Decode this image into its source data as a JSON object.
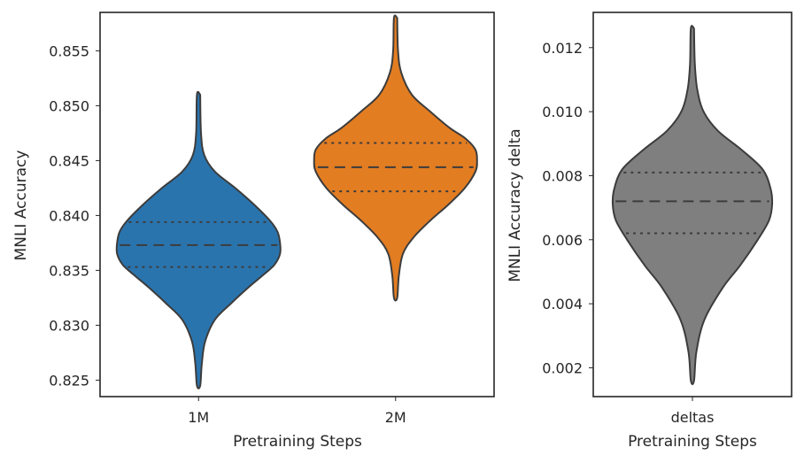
{
  "chart_data": [
    {
      "type": "violin",
      "xlabel": "Pretraining Steps",
      "ylabel": "MNLI Accuracy",
      "ylim": [
        0.8235,
        0.8585
      ],
      "yticks": [
        0.825,
        0.83,
        0.835,
        0.84,
        0.845,
        0.85,
        0.855
      ],
      "ytick_labels": [
        "0.825",
        "0.830",
        "0.835",
        "0.840",
        "0.845",
        "0.850",
        "0.855"
      ],
      "inner": "quartile",
      "series": [
        {
          "name": "1M",
          "color": "#2a74ae",
          "min": 0.8245,
          "max": 0.851,
          "q1": 0.8353,
          "median": 0.8373,
          "q3": 0.8394,
          "density": [
            [
              0.8245,
              0.02
            ],
            [
              0.8265,
              0.04
            ],
            [
              0.8285,
              0.08
            ],
            [
              0.8305,
              0.2
            ],
            [
              0.832,
              0.4
            ],
            [
              0.8335,
              0.62
            ],
            [
              0.8345,
              0.78
            ],
            [
              0.8355,
              0.93
            ],
            [
              0.8365,
              1.0
            ],
            [
              0.8375,
              1.0
            ],
            [
              0.8385,
              0.97
            ],
            [
              0.8395,
              0.88
            ],
            [
              0.841,
              0.68
            ],
            [
              0.8425,
              0.45
            ],
            [
              0.844,
              0.2
            ],
            [
              0.8455,
              0.07
            ],
            [
              0.8475,
              0.03
            ],
            [
              0.851,
              0.02
            ]
          ]
        },
        {
          "name": "2M",
          "color": "#e37d22",
          "min": 0.8325,
          "max": 0.858,
          "q1": 0.8422,
          "median": 0.8444,
          "q3": 0.8466,
          "density": [
            [
              0.8325,
              0.02
            ],
            [
              0.8345,
              0.04
            ],
            [
              0.8365,
              0.09
            ],
            [
              0.838,
              0.22
            ],
            [
              0.8395,
              0.42
            ],
            [
              0.841,
              0.65
            ],
            [
              0.8425,
              0.85
            ],
            [
              0.844,
              0.98
            ],
            [
              0.845,
              1.0
            ],
            [
              0.846,
              0.98
            ],
            [
              0.847,
              0.86
            ],
            [
              0.848,
              0.66
            ],
            [
              0.8495,
              0.42
            ],
            [
              0.851,
              0.2
            ],
            [
              0.853,
              0.07
            ],
            [
              0.855,
              0.03
            ],
            [
              0.858,
              0.02
            ]
          ]
        }
      ]
    },
    {
      "type": "violin",
      "xlabel": "Pretraining Steps",
      "ylabel": "MNLI Accuracy delta",
      "ylim": [
        0.0011,
        0.0131
      ],
      "yticks": [
        0.002,
        0.004,
        0.006,
        0.008,
        0.01,
        0.012
      ],
      "ytick_labels": [
        "0.002",
        "0.004",
        "0.006",
        "0.008",
        "0.010",
        "0.012"
      ],
      "inner": "quartile",
      "series": [
        {
          "name": "deltas",
          "color": "#7f7f7f",
          "min": 0.0016,
          "max": 0.0126,
          "q1": 0.0062,
          "median": 0.0072,
          "q3": 0.0081,
          "density": [
            [
              0.0016,
              0.02
            ],
            [
              0.0025,
              0.05
            ],
            [
              0.0035,
              0.15
            ],
            [
              0.0045,
              0.38
            ],
            [
              0.0052,
              0.6
            ],
            [
              0.006,
              0.82
            ],
            [
              0.0066,
              0.96
            ],
            [
              0.0071,
              1.0
            ],
            [
              0.0076,
              0.98
            ],
            [
              0.0082,
              0.88
            ],
            [
              0.0088,
              0.62
            ],
            [
              0.0094,
              0.32
            ],
            [
              0.01,
              0.14
            ],
            [
              0.0107,
              0.06
            ],
            [
              0.0115,
              0.03
            ],
            [
              0.0126,
              0.02
            ]
          ]
        }
      ]
    }
  ]
}
